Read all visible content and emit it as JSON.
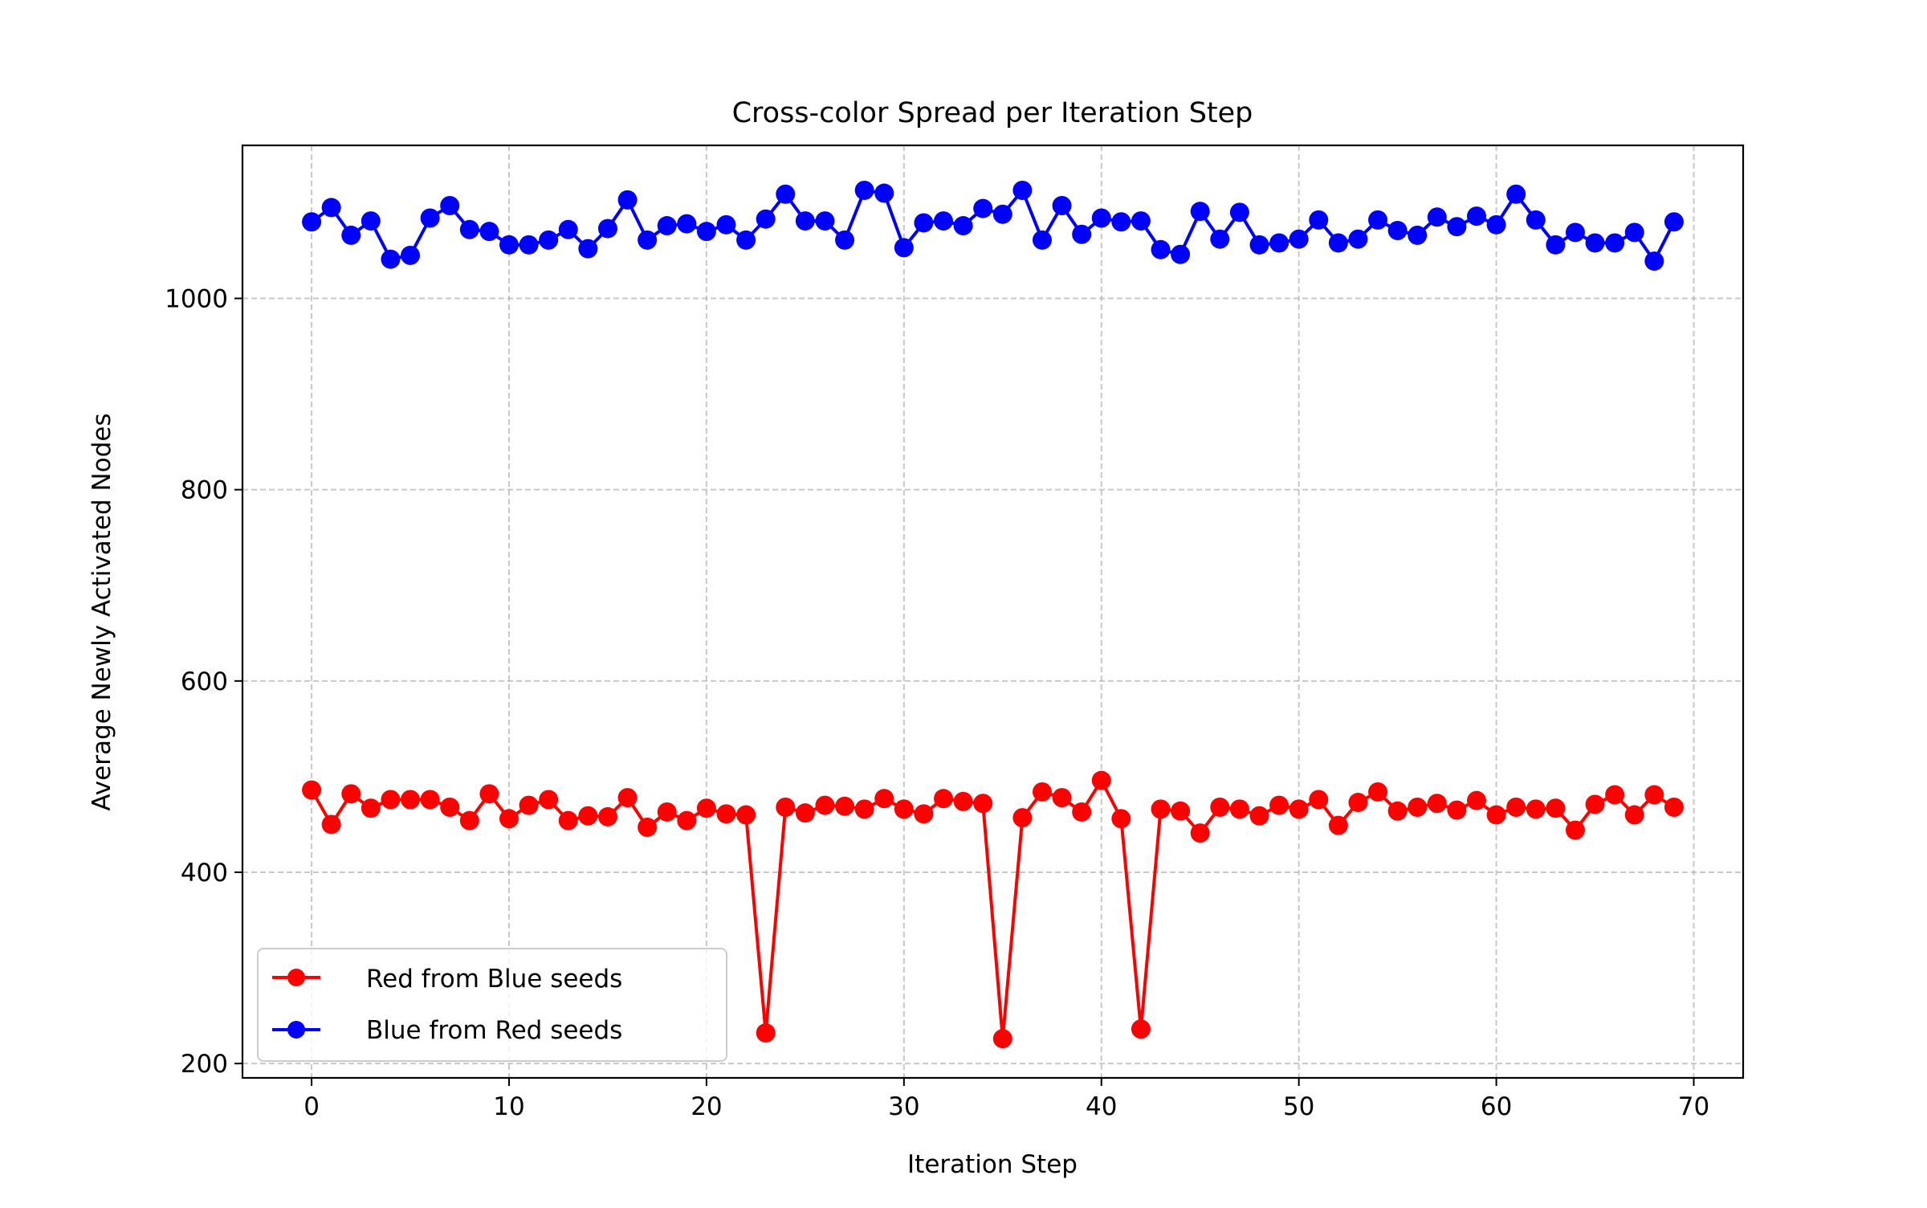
{
  "chart_data": {
    "type": "line",
    "title": "Cross-color Spread per Iteration Step",
    "xlabel": "Iteration Step",
    "ylabel": "Average Newly Activated Nodes",
    "xlim": [
      -3.5,
      72.5
    ],
    "ylim": [
      185,
      1160
    ],
    "xticks": [
      0,
      10,
      20,
      30,
      40,
      50,
      60,
      70
    ],
    "yticks": [
      200,
      400,
      600,
      800,
      1000
    ],
    "xtick_labels": [
      "0",
      "10",
      "20",
      "30",
      "40",
      "50",
      "60",
      "70"
    ],
    "ytick_labels": [
      "200",
      "400",
      "600",
      "800",
      "1000"
    ],
    "grid": true,
    "legend_position": "lower-left",
    "x": [
      0,
      1,
      2,
      3,
      4,
      5,
      6,
      7,
      8,
      9,
      10,
      11,
      12,
      13,
      14,
      15,
      16,
      17,
      18,
      19,
      20,
      21,
      22,
      23,
      24,
      25,
      26,
      27,
      28,
      29,
      30,
      31,
      32,
      33,
      34,
      35,
      36,
      37,
      38,
      39,
      40,
      41,
      42,
      43,
      44,
      45,
      46,
      47,
      48,
      49,
      50,
      51,
      52,
      53,
      54,
      55,
      56,
      57,
      58,
      59,
      60,
      61,
      62,
      63,
      64,
      65,
      66,
      67,
      68,
      69
    ],
    "series": [
      {
        "name": "Red from Blue seeds",
        "color": "#ff0000",
        "values": [
          486,
          450,
          482,
          467,
          476,
          476,
          476,
          468,
          454,
          482,
          456,
          470,
          476,
          454,
          459,
          458,
          478,
          447,
          463,
          454,
          467,
          461,
          460,
          232,
          468,
          462,
          470,
          469,
          466,
          477,
          466,
          461,
          477,
          474,
          472,
          226,
          457,
          484,
          478,
          463,
          496,
          456,
          236,
          466,
          464,
          441,
          468,
          466,
          459,
          470,
          466,
          476,
          449,
          473,
          484,
          464,
          468,
          472,
          465,
          475,
          460,
          468,
          466,
          467,
          444,
          471,
          481,
          460,
          481,
          468
        ]
      },
      {
        "name": "Blue from Red seeds",
        "color": "#0000ff",
        "values": [
          1080,
          1095,
          1066,
          1081,
          1041,
          1045,
          1084,
          1097,
          1072,
          1070,
          1056,
          1056,
          1061,
          1072,
          1052,
          1073,
          1103,
          1061,
          1076,
          1078,
          1070,
          1077,
          1061,
          1083,
          1109,
          1081,
          1081,
          1061,
          1113,
          1110,
          1053,
          1079,
          1081,
          1076,
          1094,
          1088,
          1113,
          1061,
          1097,
          1067,
          1084,
          1080,
          1081,
          1051,
          1046,
          1091,
          1062,
          1090,
          1056,
          1058,
          1062,
          1082,
          1058,
          1062,
          1082,
          1071,
          1066,
          1085,
          1075,
          1086,
          1077,
          1109,
          1082,
          1056,
          1069,
          1058,
          1058,
          1069,
          1039,
          1080
        ]
      }
    ]
  }
}
